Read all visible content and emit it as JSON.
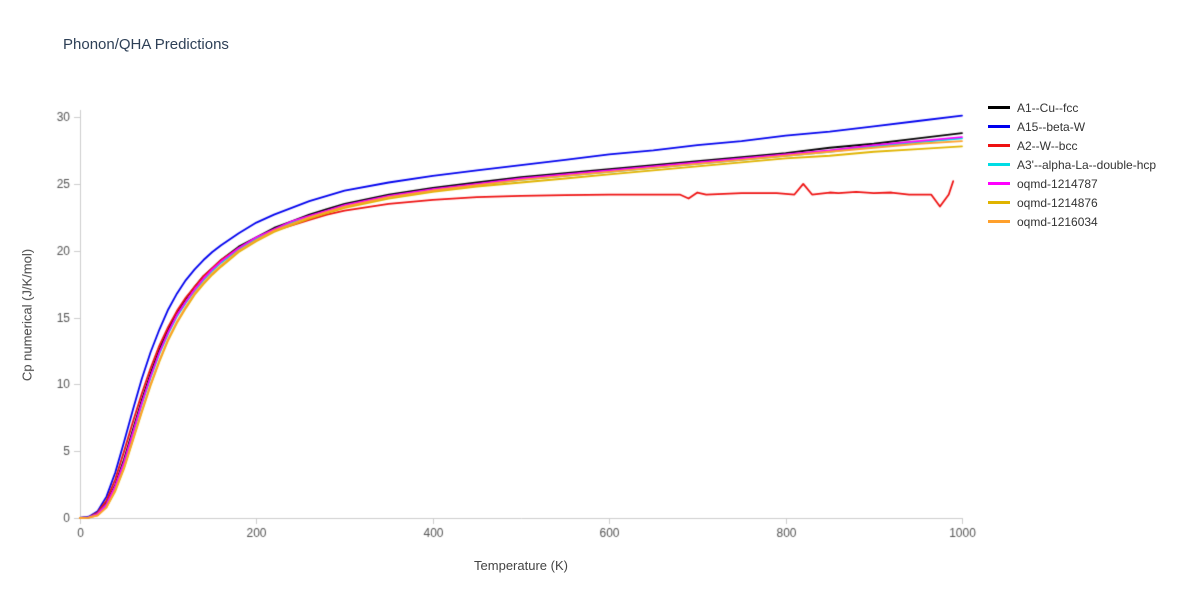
{
  "chart_data": {
    "type": "line",
    "title": "Phonon/QHA Predictions",
    "xlabel": "Temperature (K)",
    "ylabel": "Cp numerical (J/K/mol)",
    "xlim": [
      0,
      1000
    ],
    "ylim": [
      0,
      30
    ],
    "x_ticks": [
      0,
      200,
      400,
      600,
      800,
      1000
    ],
    "y_ticks": [
      0,
      5,
      10,
      15,
      20,
      25,
      30
    ],
    "grid": false,
    "legend_position": "right-outside",
    "axis_line_color": "#cccccc",
    "tick_label_color": "#555555",
    "x": [
      0,
      10,
      20,
      30,
      40,
      50,
      60,
      70,
      80,
      90,
      100,
      110,
      120,
      130,
      140,
      150,
      160,
      180,
      200,
      220,
      240,
      260,
      280,
      300,
      350,
      400,
      450,
      500,
      550,
      600,
      650,
      700,
      750,
      800,
      850,
      900,
      950,
      1000
    ],
    "series": [
      {
        "name": "A1--Cu--fcc",
        "color": "#000000",
        "y": [
          0,
          0.05,
          0.35,
          1.1,
          2.5,
          4.4,
          6.6,
          8.8,
          10.8,
          12.6,
          14.1,
          15.4,
          16.4,
          17.3,
          18.1,
          18.7,
          19.3,
          20.3,
          21.0,
          21.7,
          22.2,
          22.7,
          23.1,
          23.5,
          24.2,
          24.7,
          25.1,
          25.5,
          25.8,
          26.1,
          26.4,
          26.7,
          27.0,
          27.3,
          27.7,
          28.0,
          28.4,
          28.8
        ]
      },
      {
        "name": "A15--beta-W",
        "color": "#0000ee",
        "y": [
          0,
          0.1,
          0.5,
          1.6,
          3.4,
          5.7,
          8.1,
          10.4,
          12.4,
          14.1,
          15.6,
          16.8,
          17.8,
          18.6,
          19.3,
          19.9,
          20.4,
          21.3,
          22.1,
          22.7,
          23.2,
          23.7,
          24.1,
          24.5,
          25.1,
          25.6,
          26.0,
          26.4,
          26.8,
          27.2,
          27.5,
          27.9,
          28.2,
          28.6,
          28.9,
          29.3,
          29.7,
          30.1
        ]
      },
      {
        "name": "A2--W--bcc",
        "color": "#ee1111",
        "x": [
          0,
          10,
          20,
          30,
          40,
          50,
          60,
          70,
          80,
          90,
          100,
          110,
          120,
          130,
          140,
          150,
          160,
          180,
          200,
          220,
          240,
          260,
          280,
          300,
          350,
          400,
          450,
          500,
          550,
          600,
          640,
          660,
          680,
          690,
          700,
          710,
          730,
          750,
          770,
          790,
          810,
          820,
          830,
          850,
          860,
          880,
          900,
          920,
          940,
          955,
          965,
          975,
          985,
          990
        ],
        "y": [
          0,
          0.05,
          0.4,
          1.3,
          2.9,
          5.0,
          7.2,
          9.3,
          11.2,
          12.9,
          14.3,
          15.5,
          16.5,
          17.3,
          18.1,
          18.7,
          19.3,
          20.2,
          20.9,
          21.5,
          21.9,
          22.3,
          22.7,
          23.0,
          23.5,
          23.8,
          24.0,
          24.1,
          24.15,
          24.2,
          24.2,
          24.2,
          24.2,
          23.9,
          24.35,
          24.2,
          24.25,
          24.3,
          24.3,
          24.3,
          24.2,
          25.0,
          24.2,
          24.35,
          24.3,
          24.4,
          24.3,
          24.35,
          24.2,
          24.2,
          24.2,
          23.3,
          24.2,
          25.2
        ]
      },
      {
        "name": "A3'--alpha-La--double-hcp",
        "color": "#00dde5",
        "y": [
          0,
          0.05,
          0.3,
          1.0,
          2.3,
          4.1,
          6.3,
          8.5,
          10.5,
          12.3,
          13.8,
          15.1,
          16.1,
          17.0,
          17.8,
          18.5,
          19.1,
          20.1,
          20.9,
          21.5,
          22.1,
          22.5,
          22.9,
          23.3,
          24.0,
          24.5,
          24.9,
          25.3,
          25.6,
          25.9,
          26.2,
          26.5,
          26.8,
          27.1,
          27.4,
          27.8,
          28.1,
          28.4
        ]
      },
      {
        "name": "oqmd-1214787",
        "color": "#ff00ff",
        "y": [
          0,
          0.05,
          0.3,
          1.0,
          2.4,
          4.2,
          6.4,
          8.6,
          10.6,
          12.4,
          13.9,
          15.2,
          16.2,
          17.1,
          17.9,
          18.6,
          19.2,
          20.2,
          21.0,
          21.6,
          22.2,
          22.6,
          23.0,
          23.4,
          24.1,
          24.6,
          25.0,
          25.4,
          25.7,
          26.0,
          26.3,
          26.6,
          26.9,
          27.2,
          27.5,
          27.9,
          28.2,
          28.5
        ]
      },
      {
        "name": "oqmd-1214876",
        "color": "#e0b400",
        "y": [
          0,
          0.03,
          0.2,
          0.8,
          2.0,
          3.7,
          5.8,
          7.9,
          9.9,
          11.7,
          13.3,
          14.6,
          15.7,
          16.7,
          17.5,
          18.2,
          18.8,
          19.9,
          20.7,
          21.4,
          21.9,
          22.4,
          22.8,
          23.2,
          23.9,
          24.4,
          24.8,
          25.1,
          25.4,
          25.7,
          26.0,
          26.3,
          26.6,
          26.9,
          27.1,
          27.4,
          27.6,
          27.8
        ]
      },
      {
        "name": "oqmd-1216034",
        "color": "#ffa02c",
        "y": [
          0,
          0.03,
          0.2,
          0.8,
          2.1,
          3.8,
          5.9,
          8.0,
          10.0,
          11.8,
          13.4,
          14.7,
          15.8,
          16.8,
          17.6,
          18.3,
          18.9,
          20.0,
          20.8,
          21.5,
          22.0,
          22.5,
          22.9,
          23.3,
          24.0,
          24.5,
          24.9,
          25.3,
          25.6,
          25.9,
          26.2,
          26.5,
          26.8,
          27.1,
          27.4,
          27.7,
          28.0,
          28.2
        ]
      }
    ]
  },
  "colors": {
    "title": "#2e4057",
    "axis_text": "#444444",
    "axis_line": "#cccccc",
    "legend_text": "#333333"
  }
}
